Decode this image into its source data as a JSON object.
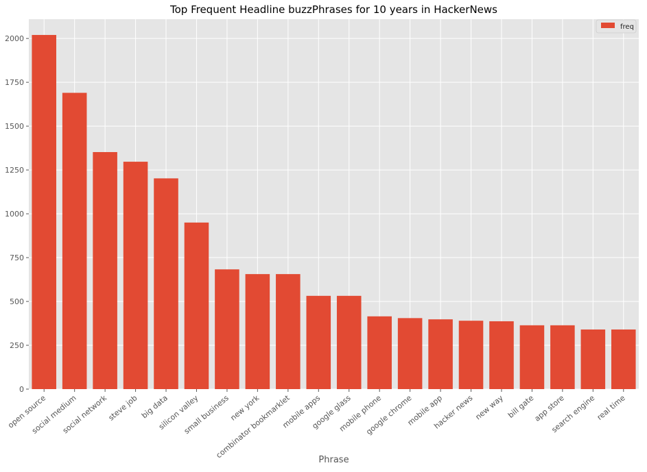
{
  "chart_data": {
    "type": "bar",
    "title": "Top Frequent Headline buzzPhrases for 10 years in HackerNews",
    "xlabel": "Phrase",
    "ylabel": "",
    "categories": [
      "open source",
      "social medium",
      "social network",
      "steve job",
      "big data",
      "silicon valley",
      "small business",
      "new york",
      "combinator bookmarklet",
      "mobile apps",
      "google glass",
      "mobile phone",
      "google chrome",
      "mobile app",
      "hacker news",
      "new way",
      "bill gate",
      "app store",
      "search engine",
      "real time"
    ],
    "series": [
      {
        "name": "freq",
        "color": "#e24a33",
        "values": [
          2020,
          1690,
          1352,
          1297,
          1202,
          950,
          683,
          656,
          656,
          532,
          532,
          415,
          405,
          398,
          390,
          387,
          364,
          364,
          340,
          340
        ]
      }
    ],
    "ylim": [
      0,
      2110
    ],
    "yticks": [
      0,
      250,
      500,
      750,
      1000,
      1250,
      1500,
      1750,
      2000
    ],
    "grid": true,
    "legend_position": "top-right",
    "colors": {
      "background": "#e5e5e5",
      "grid": "#ffffff",
      "tick_text": "#555555",
      "title_text": "#000000",
      "bar": "#e24a33"
    }
  }
}
